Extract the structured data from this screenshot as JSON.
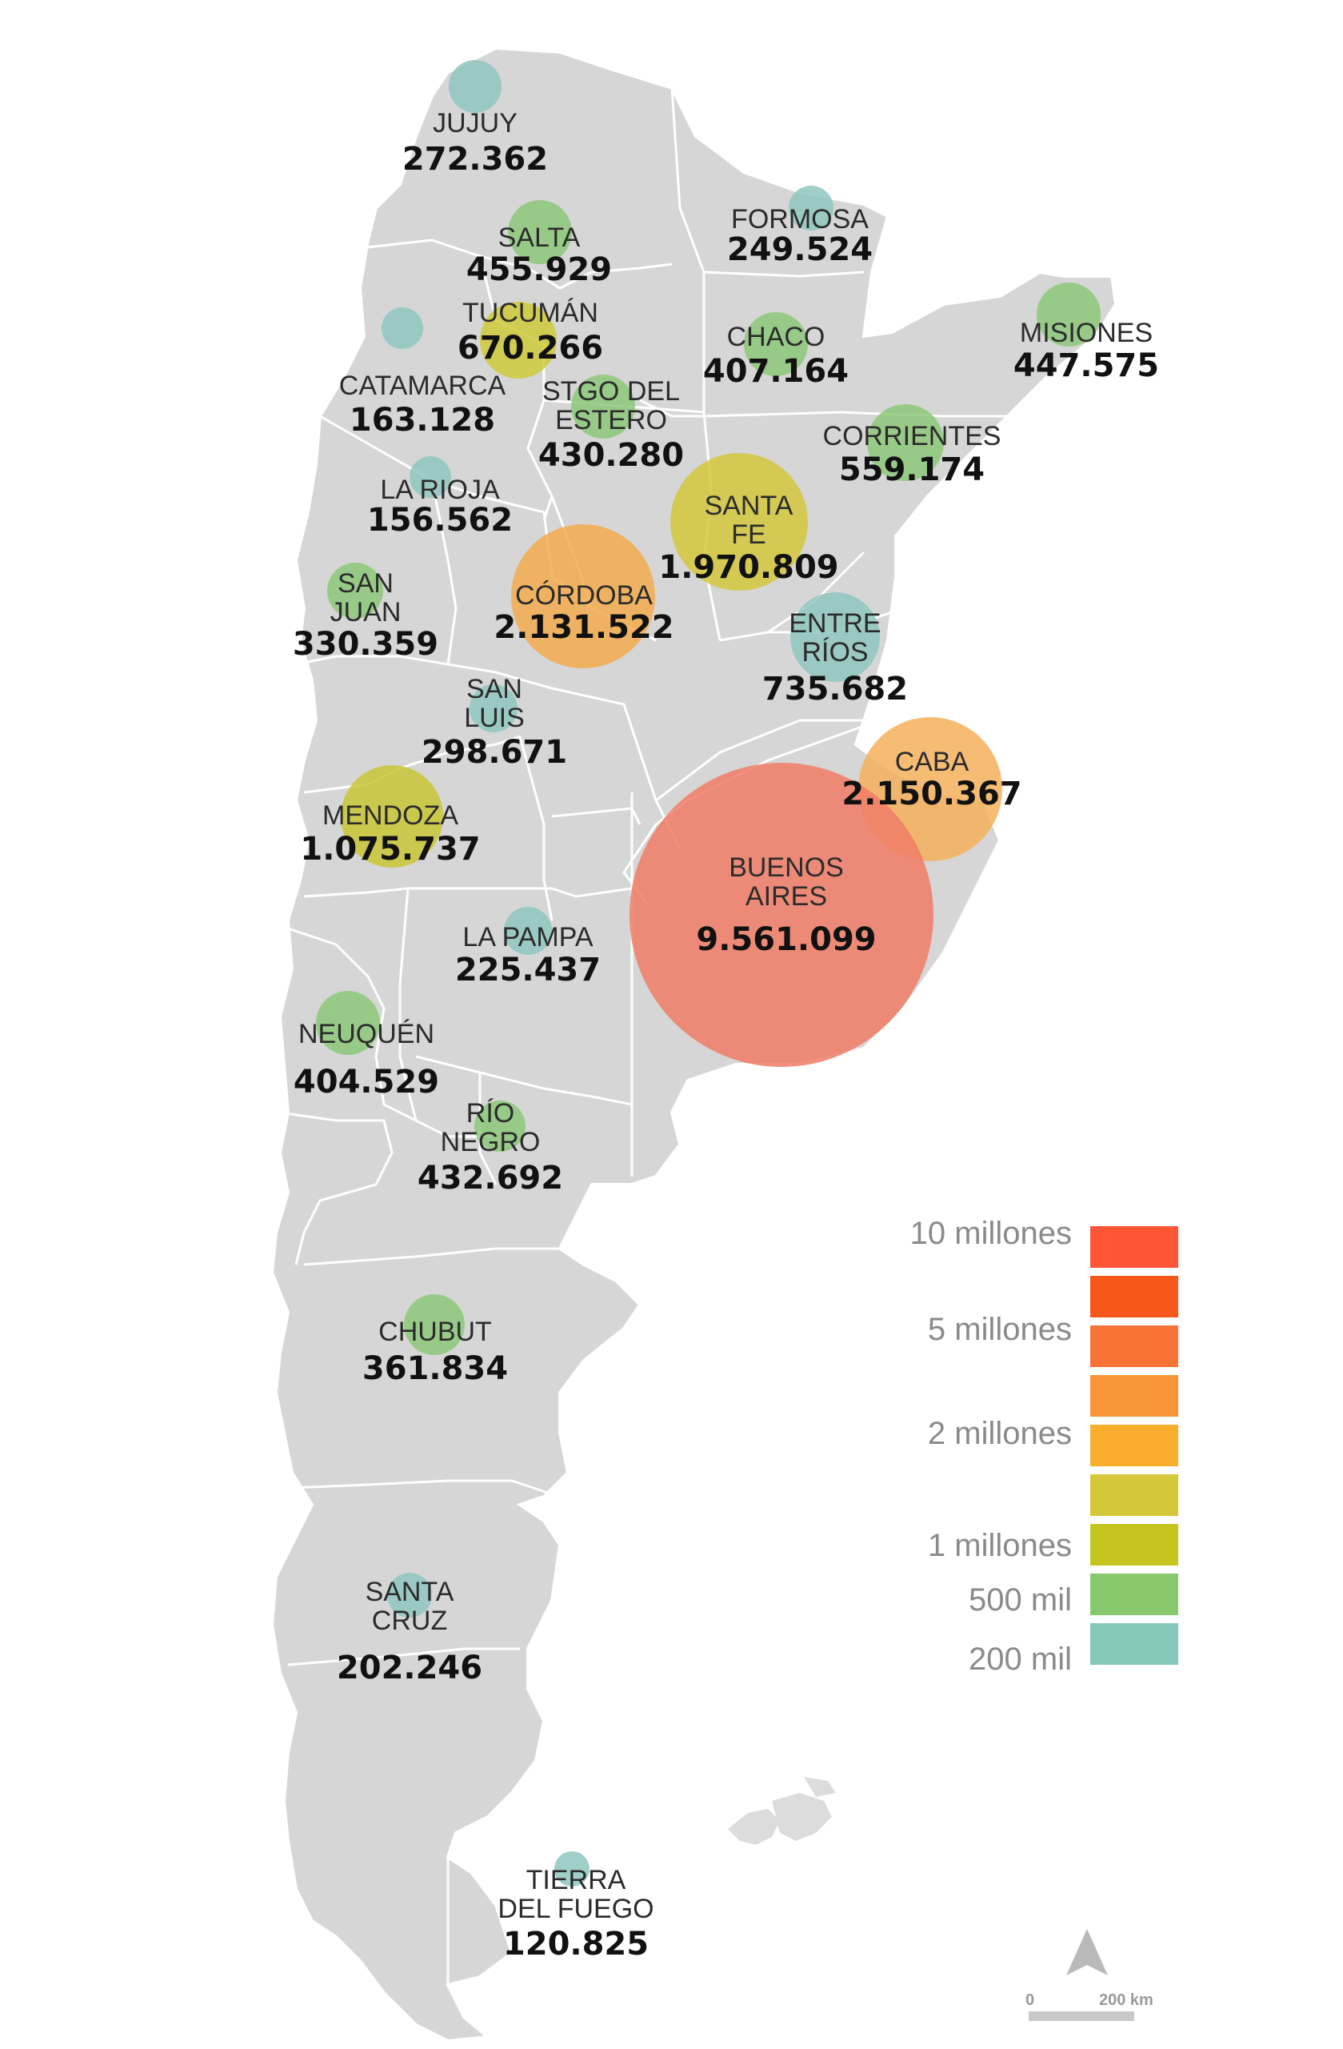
{
  "provinces": [
    {
      "id": "jujuy",
      "lines": [
        "JUJUY"
      ],
      "value": "272.362",
      "color": "#8fc7bf"
    },
    {
      "id": "salta",
      "lines": [
        "SALTA"
      ],
      "value": "455.929",
      "color": "#8dc879"
    },
    {
      "id": "formosa",
      "lines": [
        "FORMOSA"
      ],
      "value": "249.524",
      "color": "#8fc7bf"
    },
    {
      "id": "tucuman",
      "lines": [
        "TUCUMÁN"
      ],
      "value": "670.266",
      "color": "#cfc93a"
    },
    {
      "id": "catamarca",
      "lines": [
        "CATAMARCA"
      ],
      "value": "163.128",
      "color": "#8fc7bf"
    },
    {
      "id": "chaco",
      "lines": [
        "CHACO"
      ],
      "value": "407.164",
      "color": "#8dc879"
    },
    {
      "id": "misiones",
      "lines": [
        "MISIONES"
      ],
      "value": "447.575",
      "color": "#8dc879"
    },
    {
      "id": "stgo",
      "lines": [
        "STGO DEL",
        "ESTERO"
      ],
      "value": "430.280",
      "color": "#8dc879"
    },
    {
      "id": "corrientes",
      "lines": [
        "CORRIENTES"
      ],
      "value": "559.174",
      "color": "#8dc879"
    },
    {
      "id": "larioja",
      "lines": [
        "LA RIOJA"
      ],
      "value": "156.562",
      "color": "#8fc7bf"
    },
    {
      "id": "santafe",
      "lines": [
        "SANTA",
        "FE"
      ],
      "value": "1.970.809",
      "color": "#d2c73c"
    },
    {
      "id": "sanjuan",
      "lines": [
        "SAN",
        "JUAN"
      ],
      "value": "330.359",
      "color": "#8dc879"
    },
    {
      "id": "cordoba",
      "lines": [
        "CÓRDOBA"
      ],
      "value": "2.131.522",
      "color": "#f2ac4e"
    },
    {
      "id": "entrerios",
      "lines": [
        "ENTRE",
        "RÍOS"
      ],
      "value": "735.682",
      "color": "#8fc7bf"
    },
    {
      "id": "sanluis",
      "lines": [
        "SAN",
        "LUIS"
      ],
      "value": "298.671",
      "color": "#8fc7bf"
    },
    {
      "id": "caba",
      "lines": [
        "CABA"
      ],
      "value": "2.150.367",
      "color": "#f6b05c"
    },
    {
      "id": "mendoza",
      "lines": [
        "MENDOZA"
      ],
      "value": "1.075.737",
      "color": "#c9c536"
    },
    {
      "id": "buenosaires",
      "lines": [
        "BUENOS",
        "AIRES"
      ],
      "value": "9.561.099",
      "color": "#f07c66"
    },
    {
      "id": "lapampa",
      "lines": [
        "LA PAMPA"
      ],
      "value": "225.437",
      "color": "#8fc7bf"
    },
    {
      "id": "neuquen",
      "lines": [
        "NEUQUÉN"
      ],
      "value": "404.529",
      "color": "#8dc879"
    },
    {
      "id": "rionegro",
      "lines": [
        "RÍO",
        "NEGRO"
      ],
      "value": "432.692",
      "color": "#8dc879"
    },
    {
      "id": "chubut",
      "lines": [
        "CHUBUT"
      ],
      "value": "361.834",
      "color": "#8dc879"
    },
    {
      "id": "santacruz",
      "lines": [
        "SANTA",
        "CRUZ"
      ],
      "value": "202.246",
      "color": "#8fc7bf"
    },
    {
      "id": "tierradelfuego",
      "lines": [
        "TIERRA",
        "DEL FUEGO"
      ],
      "value": "120.825",
      "color": "#8fc7bf"
    }
  ],
  "legend": {
    "labels": [
      "10 millones",
      "5 millones",
      "2 millones",
      "1 millones",
      "500 mil",
      "200 mil"
    ],
    "swatches": [
      "#fd5535",
      "#f75719",
      "#f77436",
      "#f79537",
      "#f9ae2e",
      "#d4c739",
      "#c6c51f",
      "#88c86c",
      "#86c8ba"
    ]
  },
  "scale": {
    "start": "0",
    "end": "200 km"
  }
}
